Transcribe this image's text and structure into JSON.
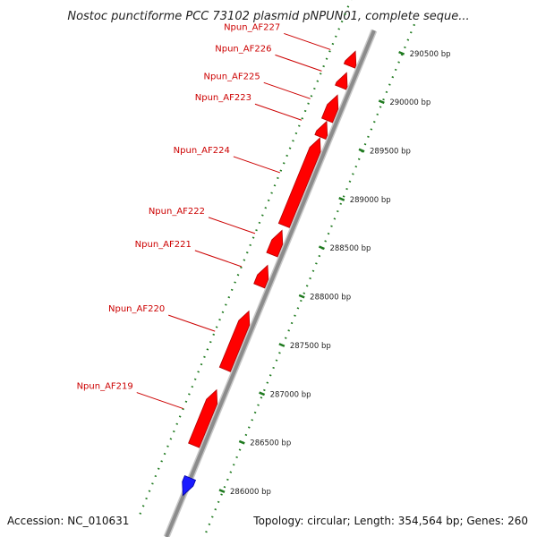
{
  "title": "Nostoc punctiforme PCC 73102 plasmid pNPUN01, complete seque...",
  "footer": {
    "accession": "Accession: NC_010631",
    "summary": "Topology: circular; Length: 354,564 bp; Genes: 260"
  },
  "colors": {
    "forward_gene": "#ff0000",
    "reverse_gene": "#1a1aff",
    "label": "#cc0000",
    "tick": "#1f7a1f",
    "backbone": "#8c8c8c"
  },
  "chart_data": {
    "type": "genome-map",
    "ticks": [
      {
        "label": "290500 bp",
        "bp": 290500
      },
      {
        "label": "290000 bp",
        "bp": 290000
      },
      {
        "label": "289500 bp",
        "bp": 289500
      },
      {
        "label": "289000 bp",
        "bp": 289000
      },
      {
        "label": "288500 bp",
        "bp": 288500
      },
      {
        "label": "288000 bp",
        "bp": 288000
      },
      {
        "label": "287500 bp",
        "bp": 287500
      },
      {
        "label": "287000 bp",
        "bp": 287000
      },
      {
        "label": "286500 bp",
        "bp": 286500
      },
      {
        "label": "286000 bp",
        "bp": 286000
      }
    ],
    "genes": [
      {
        "name": "Npun_AF227",
        "start": 290200,
        "end": 290350,
        "strand": "+"
      },
      {
        "name": "Npun_AF226",
        "start": 289980,
        "end": 290130,
        "strand": "+"
      },
      {
        "name": "Npun_AF225",
        "start": 289640,
        "end": 289900,
        "strand": "+"
      },
      {
        "name": "Npun_AF224",
        "start": 288560,
        "end": 289460,
        "strand": "+"
      },
      {
        "name": "Npun_AF223",
        "start": 289470,
        "end": 289630,
        "strand": "+"
      },
      {
        "name": "Npun_AF222",
        "start": 288260,
        "end": 288510,
        "strand": "+"
      },
      {
        "name": "Npun_AF221",
        "start": 287940,
        "end": 288150,
        "strand": "+"
      },
      {
        "name": "Npun_AF220",
        "start": 287080,
        "end": 287680,
        "strand": "+"
      },
      {
        "name": "Npun_AF219",
        "start": 286300,
        "end": 286870,
        "strand": "+"
      },
      {
        "name": "",
        "start": 285820,
        "end": 286000,
        "strand": "-"
      }
    ]
  }
}
